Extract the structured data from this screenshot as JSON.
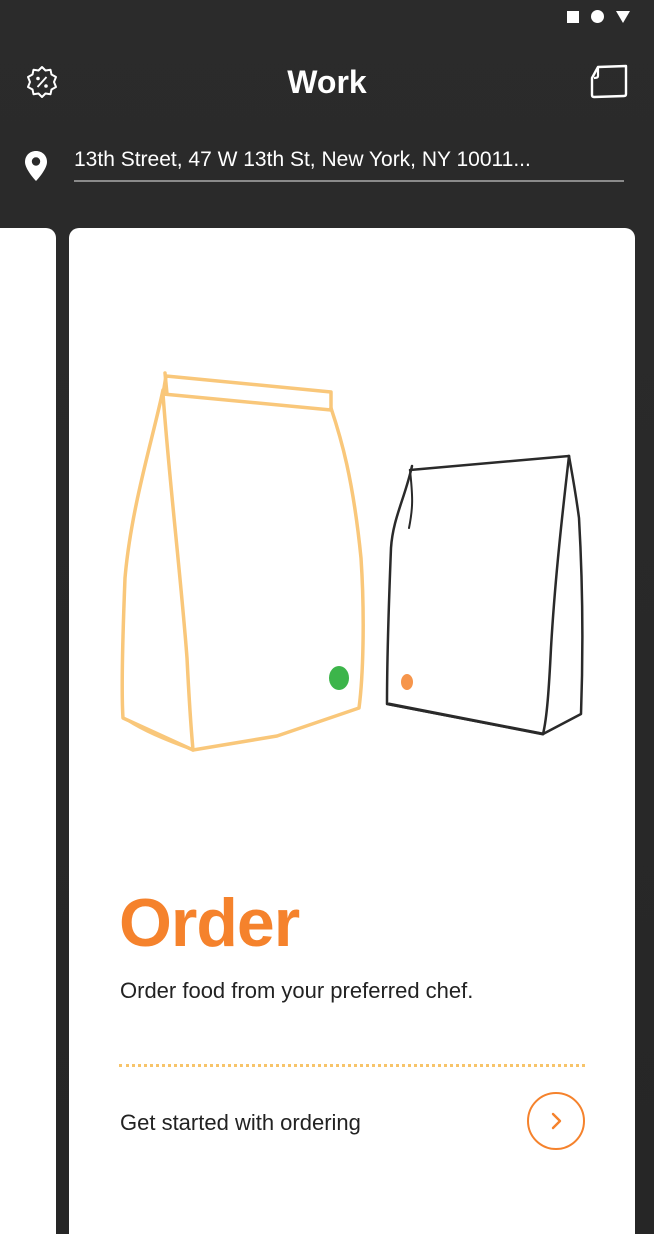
{
  "header": {
    "title": "Work"
  },
  "location": {
    "address": "13th Street, 47 W 13th St, New York, NY 10011..."
  },
  "card": {
    "title": "Order",
    "description": "Order food from your preferred chef.",
    "cta_label": "Get started with ordering"
  },
  "icons": {
    "promo": "percent-badge-icon",
    "bag": "shopping-bag-icon",
    "pin": "location-pin-icon",
    "arrow": "chevron-right-icon"
  },
  "colors": {
    "accent": "#f5822c",
    "bag_orange": "#f9c77a",
    "dot_green": "#3cb54a",
    "dot_orange": "#f5822c",
    "background": "#2a2a2a"
  }
}
